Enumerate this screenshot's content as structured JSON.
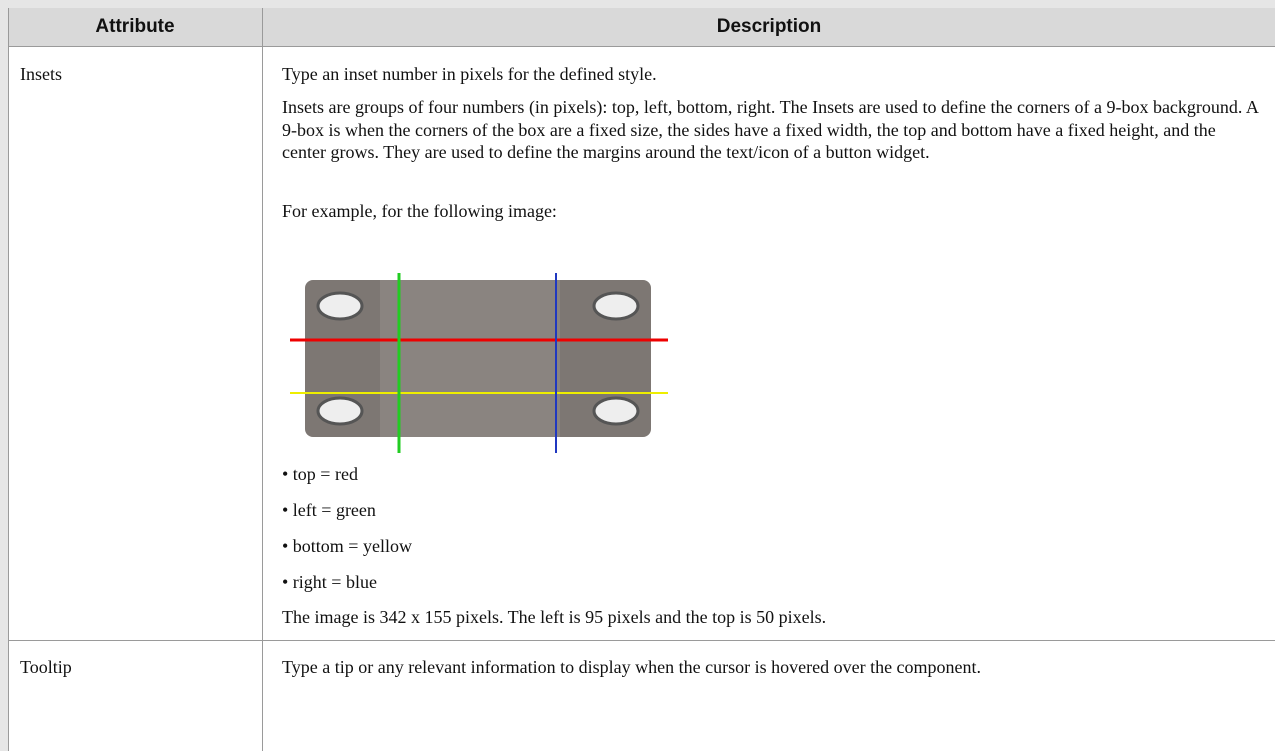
{
  "table": {
    "headers": [
      "Attribute",
      "Description"
    ],
    "rows": [
      {
        "attribute": "Insets",
        "description": {
          "intro": "Type an inset number in pixels for the defined style.",
          "body": "Insets are groups of four numbers (in pixels): top, left, bottom, right. The Insets are used to define the corners of a 9-box background. A 9-box is when the corners of the box are a fixed size, the sides have a fixed width, the top and bottom have a fixed height, and the center grows. They are used to define the margins around the text/icon of a button widget.",
          "example": "For example, for the following image:",
          "bullets": [
            "• top = red",
            "• left = green",
            "• bottom = yellow",
            "• right = blue"
          ],
          "closing": "The image is 342 x 155 pixels. The left is 95 pixels and the top is 50 pixels."
        }
      },
      {
        "attribute": "Tooltip",
        "description": {
          "text": "Type a tip or any relevant information to display when the cursor is hovered over the component."
        }
      }
    ]
  }
}
